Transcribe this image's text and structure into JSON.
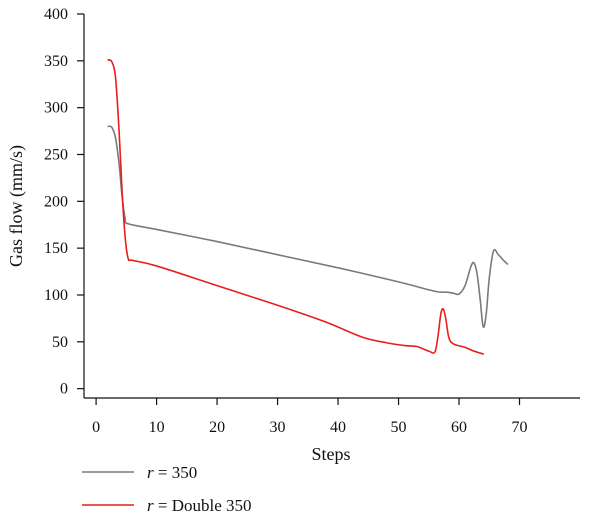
{
  "chart_data": {
    "type": "line",
    "title": "",
    "xlabel": "Steps",
    "ylabel": "Gas flow (mm/s)",
    "xlim": [
      -2,
      80
    ],
    "ylim": [
      -10,
      400
    ],
    "x_ticks": [
      0,
      10,
      20,
      30,
      40,
      50,
      60,
      70
    ],
    "y_ticks": [
      0,
      50,
      100,
      150,
      200,
      250,
      300,
      350,
      400
    ],
    "grid": false,
    "legend_position": "bottom-left",
    "series": [
      {
        "name_var": "r",
        "name_rest": " = 350",
        "color": "#7a7a7a",
        "points": [
          [
            2,
            280
          ],
          [
            2.6,
            279
          ],
          [
            3.2,
            268
          ],
          [
            3.8,
            240
          ],
          [
            4.3,
            205
          ],
          [
            4.8,
            182
          ],
          [
            5.3,
            176
          ],
          [
            10,
            170
          ],
          [
            20,
            157
          ],
          [
            30,
            143
          ],
          [
            40,
            129
          ],
          [
            50,
            114
          ],
          [
            56,
            104
          ],
          [
            58,
            103
          ],
          [
            59,
            102
          ],
          [
            60,
            101
          ],
          [
            61,
            110
          ],
          [
            62,
            131
          ],
          [
            62.5,
            134
          ],
          [
            63,
            122
          ],
          [
            63.5,
            95
          ],
          [
            64,
            66
          ],
          [
            64.5,
            80
          ],
          [
            65,
            118
          ],
          [
            65.7,
            147
          ],
          [
            66.5,
            143
          ],
          [
            67.2,
            138
          ],
          [
            68,
            133
          ]
        ]
      },
      {
        "name_var": "r",
        "name_rest": " = Double 350",
        "color": "#e81e1e",
        "points": [
          [
            2,
            351
          ],
          [
            2.6,
            349
          ],
          [
            3.2,
            333
          ],
          [
            3.8,
            275
          ],
          [
            4.3,
            210
          ],
          [
            4.8,
            162
          ],
          [
            5.3,
            139
          ],
          [
            6,
            137
          ],
          [
            10,
            131
          ],
          [
            20,
            110
          ],
          [
            30,
            89
          ],
          [
            38,
            71
          ],
          [
            44,
            55
          ],
          [
            48,
            49
          ],
          [
            51,
            46
          ],
          [
            53,
            45
          ],
          [
            55,
            40
          ],
          [
            56,
            39
          ],
          [
            56.5,
            55
          ],
          [
            57,
            80
          ],
          [
            57.4,
            85
          ],
          [
            57.8,
            75
          ],
          [
            58.3,
            55
          ],
          [
            59,
            48
          ],
          [
            61,
            44
          ],
          [
            62.5,
            40
          ],
          [
            64,
            37
          ]
        ]
      }
    ]
  }
}
